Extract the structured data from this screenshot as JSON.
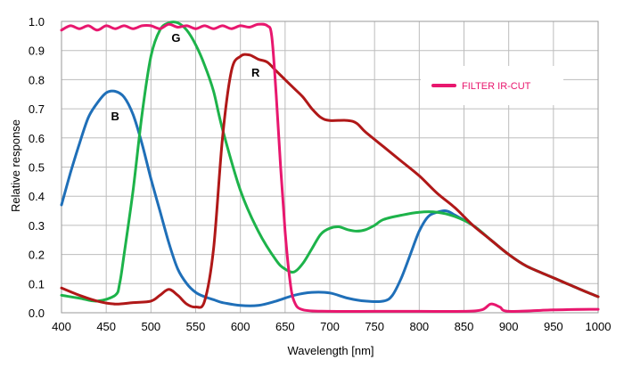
{
  "chart_data": {
    "type": "line",
    "xlabel": "Wavelength  [nm]",
    "ylabel": "Relative response",
    "xlim": [
      400,
      1000
    ],
    "ylim": [
      0,
      1.0
    ],
    "x_ticks": [
      "400",
      "450",
      "500",
      "550",
      "600",
      "650",
      "700",
      "750",
      "800",
      "850",
      "900",
      "950",
      "1000"
    ],
    "y_ticks": [
      "0.0",
      "0.1",
      "0.2",
      "0.3",
      "0.4",
      "0.5",
      "0.6",
      "0.7",
      "0.8",
      "0.9",
      "1.0"
    ],
    "grid": true,
    "legend": {
      "placement": "top-right",
      "entries": [
        {
          "label": "FILTER IR-CUT",
          "series": "filter"
        }
      ]
    },
    "series": [
      {
        "key": "filter",
        "name": "FILTER IR-CUT",
        "color": "#e8176e",
        "x": [
          400,
          410,
          420,
          430,
          440,
          450,
          460,
          470,
          480,
          490,
          500,
          510,
          520,
          530,
          540,
          550,
          560,
          570,
          580,
          590,
          600,
          610,
          620,
          630,
          635,
          640,
          645,
          650,
          655,
          660,
          670,
          700,
          750,
          800,
          850,
          870,
          880,
          890,
          900,
          950,
          1000
        ],
        "y": [
          0.97,
          0.985,
          0.975,
          0.985,
          0.97,
          0.985,
          0.975,
          0.985,
          0.975,
          0.985,
          0.985,
          0.975,
          0.99,
          0.98,
          0.985,
          0.975,
          0.985,
          0.975,
          0.985,
          0.975,
          0.985,
          0.98,
          0.99,
          0.985,
          0.95,
          0.75,
          0.5,
          0.28,
          0.12,
          0.04,
          0.01,
          0.005,
          0.005,
          0.005,
          0.005,
          0.01,
          0.03,
          0.02,
          0.005,
          0.01,
          0.012
        ]
      },
      {
        "key": "B",
        "name": "B",
        "color": "#1f6fb8",
        "x": [
          400,
          410,
          420,
          430,
          440,
          450,
          460,
          470,
          480,
          490,
          500,
          510,
          520,
          530,
          540,
          550,
          560,
          570,
          580,
          600,
          620,
          640,
          660,
          680,
          700,
          720,
          740,
          760,
          770,
          780,
          790,
          800,
          810,
          820,
          830,
          840,
          860,
          880,
          900,
          920,
          950,
          980,
          1000
        ],
        "y": [
          0.37,
          0.48,
          0.58,
          0.67,
          0.72,
          0.755,
          0.76,
          0.74,
          0.68,
          0.58,
          0.46,
          0.35,
          0.24,
          0.15,
          0.1,
          0.07,
          0.055,
          0.045,
          0.035,
          0.025,
          0.025,
          0.04,
          0.06,
          0.07,
          0.068,
          0.05,
          0.04,
          0.04,
          0.06,
          0.12,
          0.2,
          0.28,
          0.33,
          0.345,
          0.35,
          0.335,
          0.3,
          0.25,
          0.2,
          0.16,
          0.12,
          0.08,
          0.055
        ]
      },
      {
        "key": "G",
        "name": "G",
        "color": "#1db34a",
        "x": [
          400,
          420,
          440,
          460,
          465,
          470,
          480,
          490,
          500,
          510,
          520,
          530,
          540,
          550,
          560,
          570,
          580,
          600,
          620,
          640,
          650,
          660,
          670,
          680,
          690,
          700,
          710,
          720,
          730,
          740,
          750,
          760,
          780,
          800,
          820,
          840,
          860,
          880,
          900,
          920,
          950,
          980,
          1000
        ],
        "y": [
          0.06,
          0.05,
          0.04,
          0.06,
          0.1,
          0.2,
          0.42,
          0.68,
          0.88,
          0.97,
          0.995,
          0.995,
          0.97,
          0.92,
          0.85,
          0.76,
          0.63,
          0.42,
          0.28,
          0.18,
          0.15,
          0.14,
          0.17,
          0.22,
          0.27,
          0.29,
          0.295,
          0.285,
          0.28,
          0.285,
          0.3,
          0.32,
          0.335,
          0.345,
          0.345,
          0.33,
          0.3,
          0.25,
          0.2,
          0.16,
          0.12,
          0.08,
          0.055
        ]
      },
      {
        "key": "R",
        "name": "R",
        "color": "#b01818",
        "x": [
          400,
          420,
          440,
          460,
          480,
          500,
          510,
          520,
          530,
          540,
          550,
          560,
          570,
          580,
          590,
          600,
          610,
          620,
          630,
          640,
          650,
          660,
          670,
          680,
          690,
          700,
          720,
          730,
          740,
          760,
          780,
          800,
          820,
          840,
          860,
          880,
          900,
          920,
          950,
          980,
          1000
        ],
        "y": [
          0.085,
          0.06,
          0.04,
          0.03,
          0.035,
          0.04,
          0.06,
          0.08,
          0.06,
          0.03,
          0.02,
          0.04,
          0.22,
          0.6,
          0.83,
          0.88,
          0.885,
          0.87,
          0.86,
          0.83,
          0.8,
          0.77,
          0.74,
          0.7,
          0.67,
          0.66,
          0.66,
          0.65,
          0.62,
          0.57,
          0.52,
          0.47,
          0.41,
          0.36,
          0.3,
          0.25,
          0.2,
          0.16,
          0.12,
          0.08,
          0.055
        ]
      }
    ],
    "curve_labels": [
      {
        "text": "B",
        "x": 460,
        "y": 0.66
      },
      {
        "text": "G",
        "x": 528,
        "y": 0.93
      },
      {
        "text": "R",
        "x": 617,
        "y": 0.81
      }
    ]
  }
}
